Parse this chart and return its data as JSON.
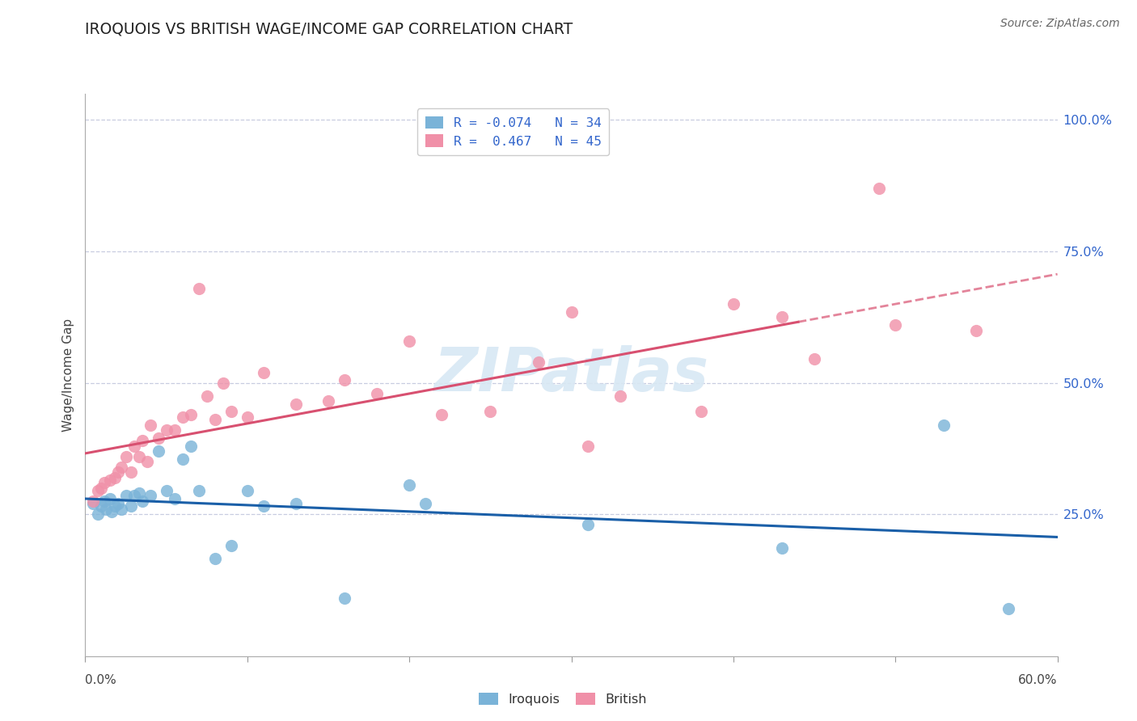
{
  "title": "IROQUOIS VS BRITISH WAGE/INCOME GAP CORRELATION CHART",
  "source": "Source: ZipAtlas.com",
  "ylabel": "Wage/Income Gap",
  "xlim": [
    0.0,
    0.6
  ],
  "ylim": [
    -0.02,
    1.05
  ],
  "ytick_positions": [
    0.0,
    0.25,
    0.5,
    0.75,
    1.0
  ],
  "ytick_labels": [
    "",
    "25.0%",
    "50.0%",
    "75.0%",
    "100.0%"
  ],
  "legend_line1": "R = -0.074   N = 34",
  "legend_line2": "R =  0.467   N = 45",
  "iroquois_color": "#7ab3d8",
  "british_color": "#f090a8",
  "iroquois_line_color": "#1a5fa8",
  "british_line_color": "#d85070",
  "grid_color": "#c8cce0",
  "watermark_color": "#d8e8f4",
  "iroquois_x": [
    0.005,
    0.008,
    0.01,
    0.012,
    0.013,
    0.015,
    0.016,
    0.018,
    0.02,
    0.022,
    0.025,
    0.028,
    0.03,
    0.033,
    0.035,
    0.04,
    0.045,
    0.05,
    0.055,
    0.06,
    0.065,
    0.07,
    0.08,
    0.09,
    0.1,
    0.11,
    0.13,
    0.16,
    0.2,
    0.21,
    0.31,
    0.43,
    0.53,
    0.57
  ],
  "iroquois_y": [
    0.27,
    0.25,
    0.265,
    0.275,
    0.26,
    0.28,
    0.255,
    0.265,
    0.27,
    0.26,
    0.285,
    0.265,
    0.285,
    0.29,
    0.275,
    0.285,
    0.37,
    0.295,
    0.28,
    0.355,
    0.38,
    0.295,
    0.165,
    0.19,
    0.295,
    0.265,
    0.27,
    0.09,
    0.305,
    0.27,
    0.23,
    0.185,
    0.42,
    0.07
  ],
  "british_x": [
    0.005,
    0.008,
    0.01,
    0.012,
    0.015,
    0.018,
    0.02,
    0.022,
    0.025,
    0.028,
    0.03,
    0.033,
    0.035,
    0.038,
    0.04,
    0.045,
    0.05,
    0.055,
    0.06,
    0.065,
    0.07,
    0.075,
    0.08,
    0.085,
    0.09,
    0.1,
    0.11,
    0.13,
    0.15,
    0.16,
    0.18,
    0.2,
    0.22,
    0.25,
    0.28,
    0.3,
    0.31,
    0.33,
    0.38,
    0.4,
    0.43,
    0.45,
    0.49,
    0.5,
    0.55
  ],
  "british_y": [
    0.275,
    0.295,
    0.3,
    0.31,
    0.315,
    0.32,
    0.33,
    0.34,
    0.36,
    0.33,
    0.38,
    0.36,
    0.39,
    0.35,
    0.42,
    0.395,
    0.41,
    0.41,
    0.435,
    0.44,
    0.68,
    0.475,
    0.43,
    0.5,
    0.445,
    0.435,
    0.52,
    0.46,
    0.465,
    0.505,
    0.48,
    0.58,
    0.44,
    0.445,
    0.54,
    0.635,
    0.38,
    0.475,
    0.445,
    0.65,
    0.625,
    0.545,
    0.87,
    0.61,
    0.6
  ]
}
